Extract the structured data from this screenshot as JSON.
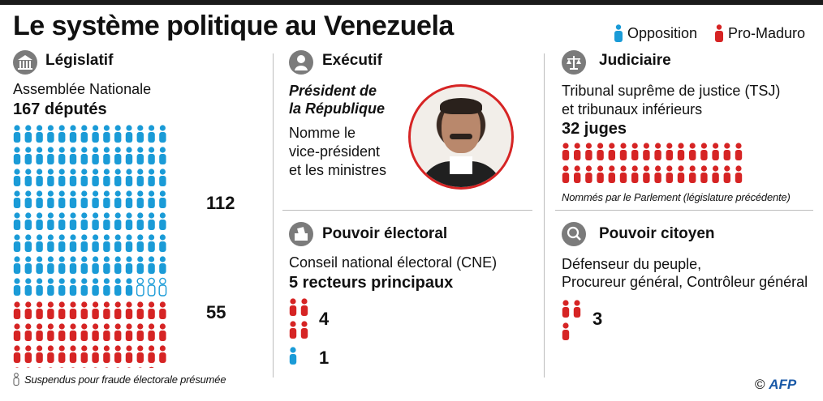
{
  "title": "Le système politique au Venezuela",
  "legend": {
    "opposition": "Opposition",
    "pro_maduro": "Pro-Maduro"
  },
  "colors": {
    "opposition": "#1a9bd7",
    "pro_maduro": "#d62424",
    "icon_grey": "#7b7b7b"
  },
  "legislatif": {
    "title": "Législatif",
    "icon": "capitol-building-icon",
    "body": "Assemblée Nationale",
    "count_label": "167 députés",
    "opposition_count": "112",
    "pro_maduro_count": "55",
    "opposition_seated": 109,
    "opposition_suspended": 3,
    "pro_maduro_seated": 54,
    "pro_maduro_suspended": 1,
    "footnote": "Suspendus pour fraude électorale présumée"
  },
  "executif": {
    "title": "Exécutif",
    "icon": "person-icon",
    "role_line1": "Président de",
    "role_line2": "la République",
    "desc_line1": "Nomme le",
    "desc_line2": "vice-président",
    "desc_line3": "et les ministres"
  },
  "judiciaire": {
    "title": "Judiciaire",
    "icon": "scales-icon",
    "body_line1": "Tribunal suprême de justice (TSJ)",
    "body_line2": "et tribunaux inférieurs",
    "count_label": "32 juges",
    "pro_maduro_count": 32,
    "note": "Nommés par le Parlement (législature précédente)"
  },
  "electoral": {
    "title": "Pouvoir électoral",
    "icon": "ballot-box-icon",
    "body": "Conseil national électoral (CNE)",
    "count_label": "5 recteurs principaux",
    "pro_maduro_count": "4",
    "opposition_count": "1"
  },
  "citoyen": {
    "title": "Pouvoir citoyen",
    "icon": "magnifier-icon",
    "body_line1": "Défenseur du peuple,",
    "body_line2": "Procureur général, Contrôleur général",
    "pro_maduro_count": "3"
  },
  "credit": "©",
  "agency": "AFP"
}
